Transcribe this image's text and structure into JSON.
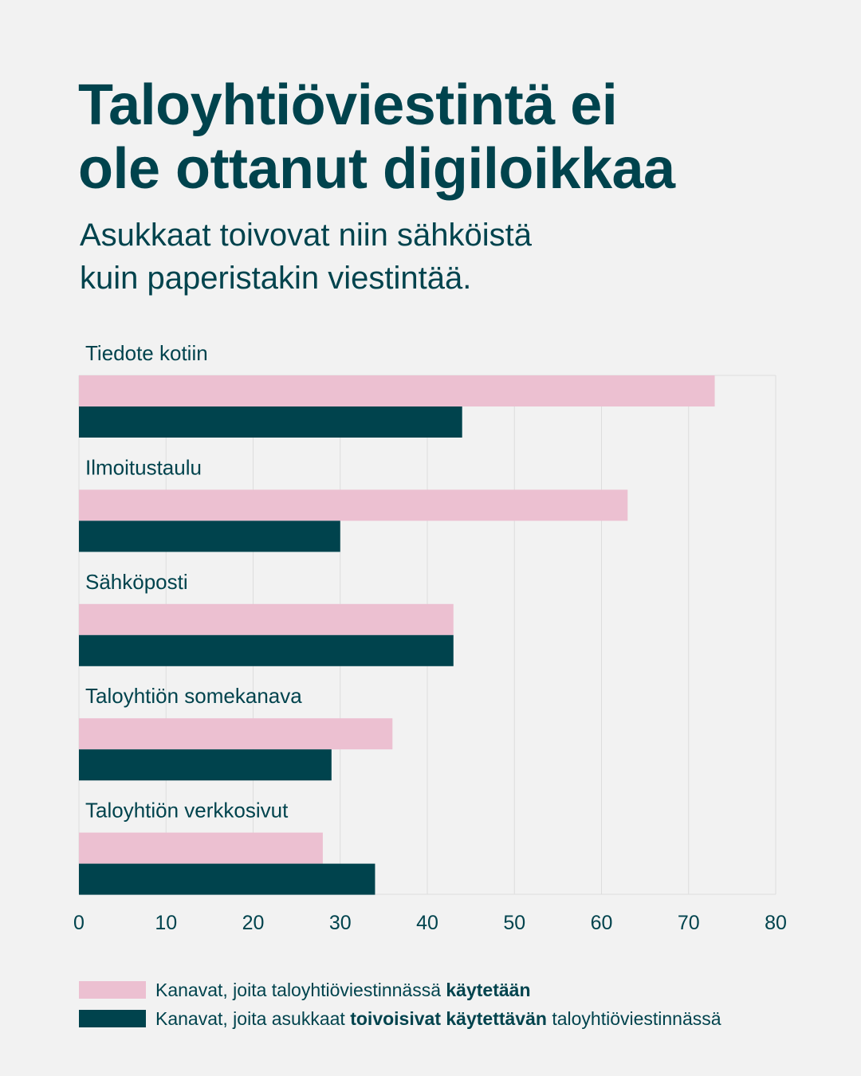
{
  "title_lines": [
    "Taloyhtiöviestintä ei",
    "ole ottanut digiloikkaa"
  ],
  "subtitle_lines": [
    "Asukkaat toivovat niin sähköistä",
    "kuin paperistakin viestintää."
  ],
  "colors": {
    "background": "#f2f2f2",
    "text": "#00434d",
    "series_used": "#ecc0d1",
    "series_wished": "#00434d",
    "grid": "#dddddd"
  },
  "legend": {
    "used": {
      "prefix": "Kanavat, joita taloyhtiöviestinnässä ",
      "bold": "käytetään",
      "suffix": ""
    },
    "wished": {
      "prefix": "Kanavat, joita asukkaat ",
      "bold": "toivoisivat käytettävän",
      "suffix": " taloyhtiöviestinnässä"
    }
  },
  "chart_data": {
    "type": "bar",
    "orientation": "horizontal",
    "categories": [
      "Tiedote kotiin",
      "Ilmoitustaulu",
      "Sähköposti",
      "Taloyhtiön somekanava",
      "Taloyhtiön verkkosivut"
    ],
    "series": [
      {
        "name": "Kanavat, joita taloyhtiöviestinnässä käytetään",
        "values": [
          73,
          63,
          43,
          36,
          28
        ]
      },
      {
        "name": "Kanavat, joita asukkaat toivoisivat käytettävän taloyhtiöviestinnässä",
        "values": [
          44,
          30,
          43,
          29,
          34
        ]
      }
    ],
    "xlim": [
      0,
      80
    ],
    "xticks": [
      0,
      10,
      20,
      30,
      40,
      50,
      60,
      70,
      80
    ],
    "grid": true,
    "legend_position": "bottom"
  }
}
